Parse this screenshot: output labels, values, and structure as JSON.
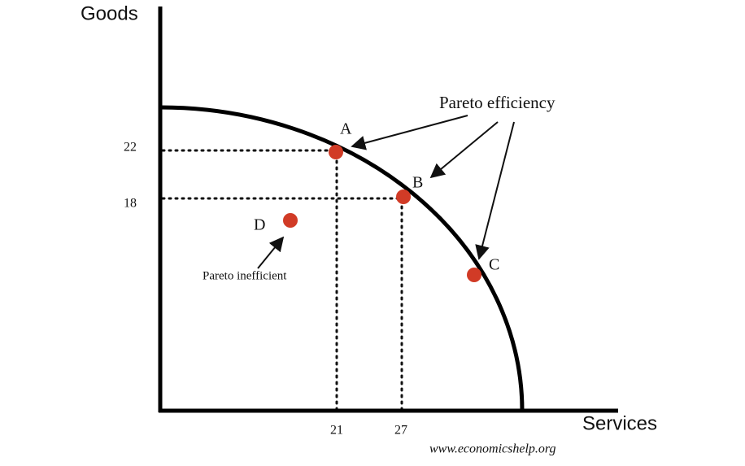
{
  "axes": {
    "y_label": "Goods",
    "x_label": "Services"
  },
  "ticks": {
    "y": [
      "22",
      "18"
    ],
    "x": [
      "21",
      "27"
    ]
  },
  "points": [
    {
      "label": "A"
    },
    {
      "label": "B"
    },
    {
      "label": "C"
    },
    {
      "label": "D"
    }
  ],
  "annotations": {
    "efficient": "Pareto efficiency",
    "inefficient": "Pareto inefficient"
  },
  "source": "www.economicshelp.org"
}
